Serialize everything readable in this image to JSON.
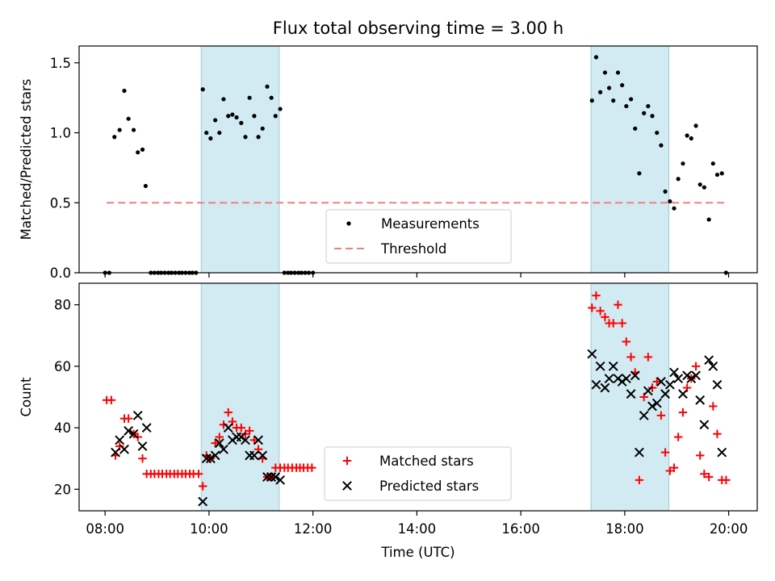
{
  "chart_data": {
    "title": "Flux total observing time = 3.00 h",
    "xlabel": "Time (UTC)",
    "xlim_hours": [
      7.5,
      20.55
    ],
    "x_ticks": [
      {
        "h": 8,
        "label": "08:00"
      },
      {
        "h": 10,
        "label": "10:00"
      },
      {
        "h": 12,
        "label": "12:00"
      },
      {
        "h": 14,
        "label": "14:00"
      },
      {
        "h": 16,
        "label": "16:00"
      },
      {
        "h": 18,
        "label": "18:00"
      },
      {
        "h": 20,
        "label": "20:00"
      }
    ],
    "shaded_intervals_hours": [
      [
        9.85,
        11.35
      ],
      [
        17.35,
        18.85
      ]
    ],
    "shade_color": "#add8e6",
    "panels": [
      {
        "id": "ratio",
        "type": "scatter",
        "ylabel": "Matched/Predicted stars",
        "ylim": [
          0,
          1.62
        ],
        "y_ticks": [
          {
            "v": 0.0,
            "label": "0.0"
          },
          {
            "v": 0.5,
            "label": "0.5"
          },
          {
            "v": 1.0,
            "label": "1.0"
          },
          {
            "v": 1.5,
            "label": "1.5"
          }
        ],
        "threshold": {
          "name": "Threshold",
          "value": 0.5,
          "x_range_hours": [
            8.03,
            19.95
          ],
          "color": "#f08080"
        },
        "series": [
          {
            "name": "Measurements",
            "marker": "dot",
            "color": "#000000",
            "points": [
              [
                8.0,
                0
              ],
              [
                8.08,
                0
              ],
              [
                8.18,
                0.97
              ],
              [
                8.28,
                1.02
              ],
              [
                8.37,
                1.3
              ],
              [
                8.45,
                1.1
              ],
              [
                8.55,
                1.02
              ],
              [
                8.63,
                0.86
              ],
              [
                8.72,
                0.88
              ],
              [
                8.78,
                0.62
              ],
              [
                8.88,
                0
              ],
              [
                8.95,
                0
              ],
              [
                9.02,
                0
              ],
              [
                9.08,
                0
              ],
              [
                9.15,
                0
              ],
              [
                9.22,
                0
              ],
              [
                9.28,
                0
              ],
              [
                9.35,
                0
              ],
              [
                9.42,
                0
              ],
              [
                9.48,
                0
              ],
              [
                9.55,
                0
              ],
              [
                9.62,
                0
              ],
              [
                9.68,
                0
              ],
              [
                9.75,
                0
              ],
              [
                9.88,
                1.31
              ],
              [
                9.95,
                1.0
              ],
              [
                10.03,
                0.96
              ],
              [
                10.12,
                1.09
              ],
              [
                10.2,
                1.0
              ],
              [
                10.28,
                1.24
              ],
              [
                10.37,
                1.12
              ],
              [
                10.45,
                1.13
              ],
              [
                10.53,
                1.11
              ],
              [
                10.62,
                1.07
              ],
              [
                10.7,
                0.97
              ],
              [
                10.78,
                1.25
              ],
              [
                10.87,
                1.12
              ],
              [
                10.95,
                0.97
              ],
              [
                11.03,
                1.03
              ],
              [
                11.12,
                1.33
              ],
              [
                11.2,
                1.25
              ],
              [
                11.28,
                1.12
              ],
              [
                11.37,
                1.17
              ],
              [
                11.45,
                0
              ],
              [
                11.52,
                0
              ],
              [
                11.58,
                0
              ],
              [
                11.65,
                0
              ],
              [
                11.72,
                0
              ],
              [
                11.78,
                0
              ],
              [
                11.85,
                0
              ],
              [
                11.92,
                0
              ],
              [
                12.0,
                0
              ],
              [
                17.37,
                1.23
              ],
              [
                17.45,
                1.54
              ],
              [
                17.53,
                1.29
              ],
              [
                17.62,
                1.43
              ],
              [
                17.7,
                1.32
              ],
              [
                17.78,
                1.23
              ],
              [
                17.87,
                1.43
              ],
              [
                17.95,
                1.34
              ],
              [
                18.03,
                1.19
              ],
              [
                18.12,
                1.24
              ],
              [
                18.2,
                1.03
              ],
              [
                18.28,
                0.71
              ],
              [
                18.37,
                1.14
              ],
              [
                18.45,
                1.19
              ],
              [
                18.53,
                1.12
              ],
              [
                18.62,
                1.0
              ],
              [
                18.7,
                0.91
              ],
              [
                18.78,
                0.58
              ],
              [
                18.87,
                0.51
              ],
              [
                18.95,
                0.46
              ],
              [
                19.03,
                0.67
              ],
              [
                19.12,
                0.78
              ],
              [
                19.2,
                0.98
              ],
              [
                19.28,
                0.96
              ],
              [
                19.37,
                1.05
              ],
              [
                19.45,
                0.63
              ],
              [
                19.53,
                0.61
              ],
              [
                19.62,
                0.38
              ],
              [
                19.7,
                0.78
              ],
              [
                19.78,
                0.7
              ],
              [
                19.87,
                0.71
              ],
              [
                19.95,
                0.0
              ]
            ]
          }
        ],
        "legend": {
          "position": "lower center",
          "entries": [
            "Measurements",
            "Threshold"
          ]
        }
      },
      {
        "id": "count",
        "type": "scatter",
        "ylabel": "Count",
        "ylim": [
          13,
          87
        ],
        "y_ticks": [
          {
            "v": 20,
            "label": "20"
          },
          {
            "v": 40,
            "label": "40"
          },
          {
            "v": 60,
            "label": "60"
          },
          {
            "v": 80,
            "label": "80"
          }
        ],
        "series": [
          {
            "name": "Matched stars",
            "marker": "plus",
            "color": "#ff0000",
            "points": [
              [
                8.03,
                49
              ],
              [
                8.12,
                49
              ],
              [
                8.2,
                31
              ],
              [
                8.28,
                34
              ],
              [
                8.37,
                43
              ],
              [
                8.45,
                43
              ],
              [
                8.55,
                38
              ],
              [
                8.63,
                37
              ],
              [
                8.72,
                30
              ],
              [
                8.8,
                25
              ],
              [
                8.88,
                25
              ],
              [
                8.95,
                25
              ],
              [
                9.03,
                25
              ],
              [
                9.1,
                25
              ],
              [
                9.18,
                25
              ],
              [
                9.25,
                25
              ],
              [
                9.33,
                25
              ],
              [
                9.4,
                25
              ],
              [
                9.48,
                25
              ],
              [
                9.55,
                25
              ],
              [
                9.63,
                25
              ],
              [
                9.7,
                25
              ],
              [
                9.8,
                25
              ],
              [
                9.88,
                21
              ],
              [
                9.95,
                31
              ],
              [
                10.03,
                30
              ],
              [
                10.12,
                35
              ],
              [
                10.2,
                37
              ],
              [
                10.28,
                41
              ],
              [
                10.37,
                45
              ],
              [
                10.45,
                42
              ],
              [
                10.53,
                40
              ],
              [
                10.62,
                40
              ],
              [
                10.7,
                38
              ],
              [
                10.78,
                39
              ],
              [
                10.87,
                36
              ],
              [
                10.95,
                33
              ],
              [
                11.03,
                30
              ],
              [
                11.12,
                24
              ],
              [
                11.2,
                24
              ],
              [
                11.28,
                27
              ],
              [
                11.37,
                27
              ],
              [
                11.45,
                27
              ],
              [
                11.52,
                27
              ],
              [
                11.6,
                27
              ],
              [
                11.68,
                27
              ],
              [
                11.75,
                27
              ],
              [
                11.82,
                27
              ],
              [
                11.9,
                27
              ],
              [
                11.98,
                27
              ],
              [
                17.37,
                79
              ],
              [
                17.45,
                83
              ],
              [
                17.53,
                78
              ],
              [
                17.62,
                76
              ],
              [
                17.7,
                74
              ],
              [
                17.78,
                74
              ],
              [
                17.87,
                80
              ],
              [
                17.95,
                74
              ],
              [
                18.03,
                68
              ],
              [
                18.12,
                63
              ],
              [
                18.2,
                58
              ],
              [
                18.28,
                23
              ],
              [
                18.37,
                50
              ],
              [
                18.45,
                63
              ],
              [
                18.53,
                53
              ],
              [
                18.62,
                55
              ],
              [
                18.7,
                44
              ],
              [
                18.78,
                32
              ],
              [
                18.87,
                26
              ],
              [
                18.95,
                27
              ],
              [
                19.03,
                37
              ],
              [
                19.12,
                45
              ],
              [
                19.2,
                53
              ],
              [
                19.28,
                56
              ],
              [
                19.37,
                60
              ],
              [
                19.45,
                31
              ],
              [
                19.53,
                25
              ],
              [
                19.62,
                24
              ],
              [
                19.7,
                47
              ],
              [
                19.78,
                38
              ],
              [
                19.87,
                23
              ],
              [
                19.95,
                23
              ]
            ]
          },
          {
            "name": "Predicted stars",
            "marker": "x",
            "color": "#000000",
            "points": [
              [
                8.2,
                32
              ],
              [
                8.28,
                36
              ],
              [
                8.37,
                33
              ],
              [
                8.45,
                39
              ],
              [
                8.55,
                38
              ],
              [
                8.63,
                44
              ],
              [
                8.72,
                34
              ],
              [
                8.8,
                40
              ],
              [
                9.88,
                16
              ],
              [
                9.95,
                30
              ],
              [
                10.03,
                30
              ],
              [
                10.12,
                31
              ],
              [
                10.2,
                35
              ],
              [
                10.28,
                33
              ],
              [
                10.37,
                40
              ],
              [
                10.45,
                36
              ],
              [
                10.53,
                37
              ],
              [
                10.62,
                37
              ],
              [
                10.7,
                36
              ],
              [
                10.78,
                31
              ],
              [
                10.87,
                31
              ],
              [
                10.95,
                36
              ],
              [
                11.03,
                31
              ],
              [
                11.12,
                24
              ],
              [
                11.2,
                24
              ],
              [
                11.28,
                24
              ],
              [
                11.37,
                23
              ],
              [
                17.37,
                64
              ],
              [
                17.45,
                54
              ],
              [
                17.53,
                60
              ],
              [
                17.62,
                53
              ],
              [
                17.7,
                56
              ],
              [
                17.78,
                60
              ],
              [
                17.87,
                56
              ],
              [
                17.95,
                55
              ],
              [
                18.03,
                56
              ],
              [
                18.12,
                51
              ],
              [
                18.2,
                57
              ],
              [
                18.28,
                32
              ],
              [
                18.37,
                44
              ],
              [
                18.45,
                52
              ],
              [
                18.53,
                47
              ],
              [
                18.62,
                48
              ],
              [
                18.7,
                55
              ],
              [
                18.78,
                51
              ],
              [
                18.87,
                54
              ],
              [
                18.95,
                58
              ],
              [
                19.03,
                56
              ],
              [
                19.12,
                51
              ],
              [
                19.2,
                57
              ],
              [
                19.28,
                56
              ],
              [
                19.37,
                57
              ],
              [
                19.45,
                49
              ],
              [
                19.53,
                41
              ],
              [
                19.62,
                62
              ],
              [
                19.7,
                60
              ],
              [
                19.78,
                54
              ],
              [
                19.87,
                32
              ]
            ]
          }
        ],
        "legend": {
          "position": "lower center",
          "entries": [
            "Matched stars",
            "Predicted stars"
          ]
        }
      }
    ]
  }
}
